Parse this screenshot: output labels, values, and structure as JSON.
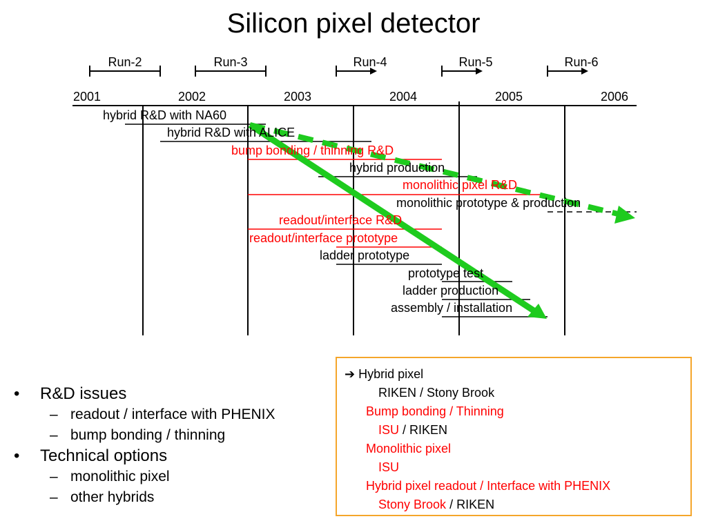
{
  "title": "Silicon pixel detector",
  "runs": [
    "Run-2",
    "Run-3",
    "Run-4",
    "Run-5",
    "Run-6"
  ],
  "years": [
    "2001",
    "2002",
    "2003",
    "2004",
    "2005",
    "2006"
  ],
  "tasks": [
    {
      "label": "hybrid R&D with NA60",
      "color": "#000000"
    },
    {
      "label": "hybrid R&D with ALICE",
      "color": "#000000"
    },
    {
      "label": "bump bonding / thinning R&D",
      "color": "#ff0000"
    },
    {
      "label": "hybrid production",
      "color": "#000000"
    },
    {
      "label": "monolithic pixel R&D",
      "color": "#ff0000"
    },
    {
      "label": "monolithic prototype & production",
      "color": "#000000"
    },
    {
      "label": "readout/interface R&D",
      "color": "#ff0000"
    },
    {
      "label": "readout/interface prototype",
      "color": "#ff0000"
    },
    {
      "label": "ladder prototype",
      "color": "#000000"
    },
    {
      "label": "prototype test",
      "color": "#000000"
    },
    {
      "label": "ladder production",
      "color": "#000000"
    },
    {
      "label": "assembly / installation",
      "color": "#000000"
    }
  ],
  "bullets": {
    "item1": "R&D issues",
    "item1_sub1": "readout / interface with PHENIX",
    "item1_sub2": "bump bonding / thinning",
    "item2": "Technical options",
    "item2_sub1": "monolithic pixel",
    "item2_sub2": "other hybrids",
    "bullet_symbol": "•",
    "dash_symbol": "–"
  },
  "box": {
    "arrow": "➔",
    "l1": "Hybrid pixel",
    "l2": "RIKEN / Stony Brook",
    "l3": "Bump bonding / Thinning",
    "l4_red": "ISU",
    "l4_black": " / RIKEN",
    "l5": "Monolithic pixel",
    "l6": "ISU",
    "l7": "Hybrid pixel readout / Interface with PHENIX",
    "l8_red": "Stony Brook",
    "l8_black": " / RIKEN"
  },
  "colors": {
    "accent_red": "#ff0000",
    "arrow_green": "#1ecb1e",
    "box_border": "#f5a52a"
  }
}
